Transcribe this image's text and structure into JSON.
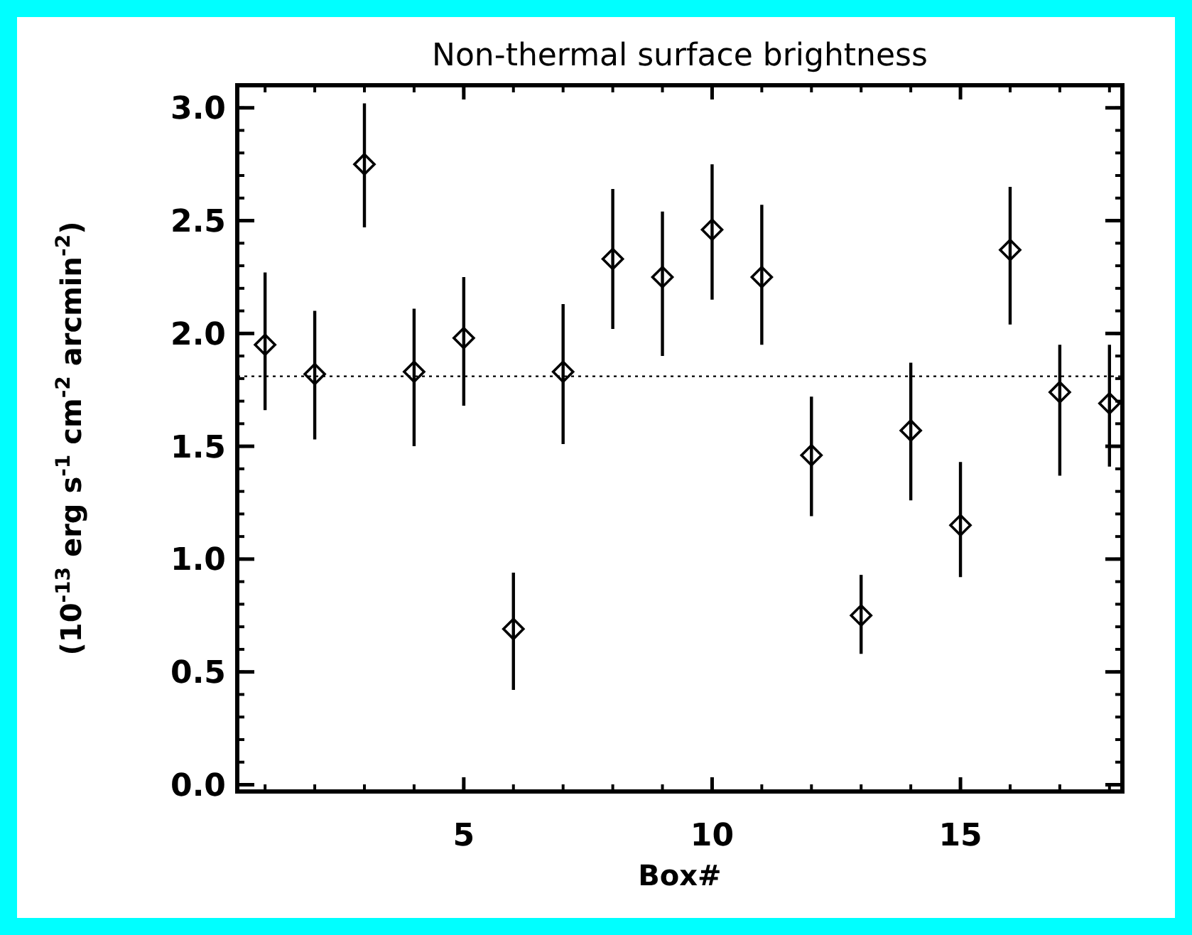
{
  "chart_data": {
    "type": "scatter",
    "title": "Non-thermal surface brightness",
    "xlabel": "Box#",
    "ylabel": "(10$^{-13}$ erg s$^{-1}$ cm$^{-2}$ arcmin$^{-2}$)",
    "x": [
      1,
      2,
      3,
      4,
      5,
      6,
      7,
      8,
      9,
      10,
      11,
      12,
      13,
      14,
      15,
      16,
      17,
      18
    ],
    "series": [
      {
        "color": "#000000",
        "values": [
          1.95,
          1.82,
          2.75,
          1.83,
          1.98,
          0.69,
          1.83,
          2.33,
          2.25,
          2.46,
          2.25,
          1.46,
          0.75,
          1.57,
          1.15,
          2.37,
          1.74,
          1.69
        ],
        "errors": [
          [
            1.66,
            2.27
          ],
          [
            1.53,
            2.1
          ],
          [
            2.47,
            3.02
          ],
          [
            1.5,
            2.11
          ],
          [
            1.68,
            2.25
          ],
          [
            0.42,
            0.94
          ],
          [
            1.51,
            2.13
          ],
          [
            2.02,
            2.64
          ],
          [
            1.9,
            2.54
          ],
          [
            2.15,
            2.75
          ],
          [
            1.95,
            2.57
          ],
          [
            1.19,
            1.72
          ],
          [
            0.58,
            0.93
          ],
          [
            1.26,
            1.87
          ],
          [
            0.92,
            1.43
          ],
          [
            2.04,
            2.65
          ],
          [
            1.37,
            1.95
          ],
          [
            1.41,
            1.95
          ]
        ]
      }
    ],
    "marker": "diamond",
    "xlim": [
      0.44,
      18.26
    ],
    "xticks": [
      5,
      10,
      15
    ],
    "ylim": [
      -0.03,
      3.1
    ],
    "yticks": [
      {
        "value": 0,
        "label": "0.0"
      },
      {
        "value": 0.5,
        "label": "0.5"
      },
      {
        "value": 1,
        "label": "1.0"
      },
      {
        "value": 1.5,
        "label": "1.5"
      },
      {
        "value": 2,
        "label": "2.0"
      },
      {
        "value": 2.5,
        "label": "2.5"
      },
      {
        "value": 3,
        "label": "3.0"
      }
    ],
    "ref_lines": [
      {
        "axis": "y",
        "value": 1.81,
        "line_style": "dotted",
        "color": "#000000"
      }
    ],
    "grid": false
  }
}
